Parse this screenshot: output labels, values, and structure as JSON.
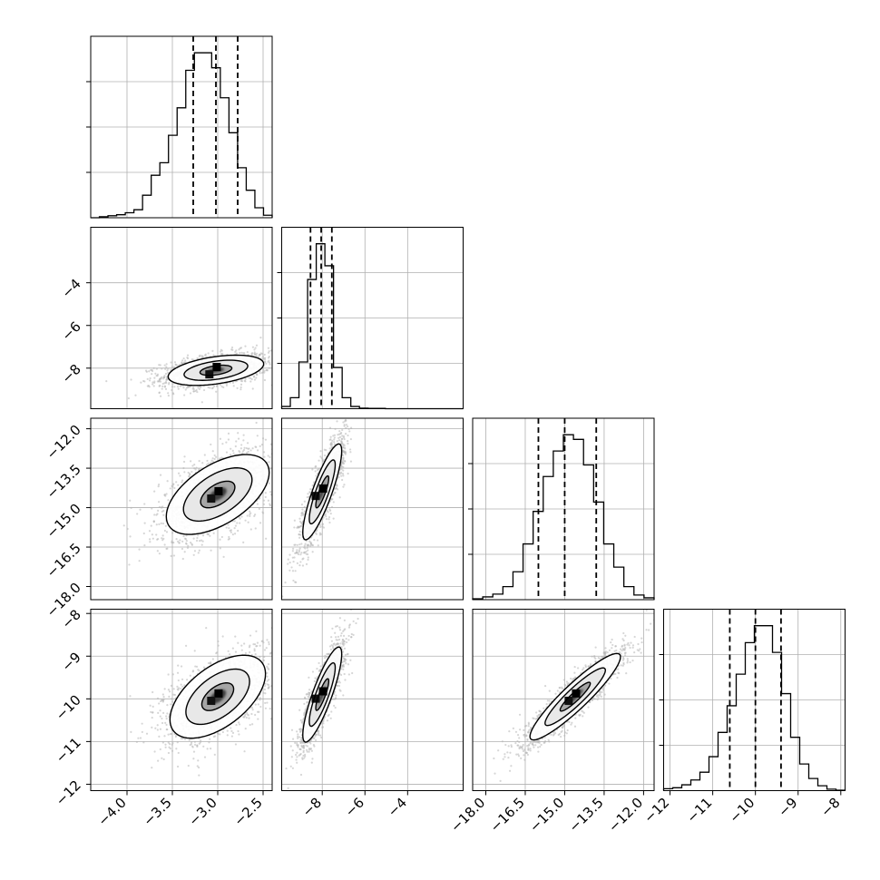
{
  "chart_data": {
    "type": "corner",
    "params": [
      {
        "key": "p0",
        "range": [
          -4.4,
          -2.4
        ],
        "ticks": [
          -4.0,
          -3.5,
          -3.0,
          -2.5
        ],
        "tick_labels": [
          "−4.0",
          "−3.5",
          "−3.0",
          "−2.5"
        ]
      },
      {
        "key": "p1",
        "range": [
          -9.9,
          -1.4
        ],
        "ticks": [
          -8,
          -6,
          -4
        ],
        "tick_labels": [
          "−8",
          "−6",
          "−4"
        ]
      },
      {
        "key": "p2",
        "range": [
          -18.5,
          -11.6
        ],
        "ticks": [
          -18.0,
          -16.5,
          -15.0,
          -13.5,
          -12.0
        ],
        "tick_labels": [
          "−18.0",
          "−16.5",
          "−15.0",
          "−13.5",
          "−12.0"
        ]
      },
      {
        "key": "p3",
        "range": [
          -12.15,
          -7.9
        ],
        "ticks": [
          -12,
          -11,
          -10,
          -9,
          -8
        ],
        "tick_labels": [
          "−12",
          "−11",
          "−10",
          "−9",
          "−8"
        ]
      }
    ],
    "histograms": [
      {
        "param": "p0",
        "bins": [
          -4.4,
          -2.4
        ],
        "counts": [
          0,
          2,
          4,
          6,
          10,
          16,
          45,
          85,
          110,
          165,
          220,
          295,
          330,
          330,
          300,
          240,
          170,
          100,
          55,
          20,
          5
        ],
        "quantiles": [
          -3.27,
          -3.02,
          -2.78
        ]
      },
      {
        "param": "p1",
        "bins": [
          -9.9,
          -1.4
        ],
        "counts": [
          8,
          40,
          170,
          470,
          600,
          520,
          150,
          40,
          8,
          2,
          1,
          1,
          0,
          0,
          0,
          0,
          0,
          0,
          0,
          0,
          0
        ],
        "quantiles": [
          -8.55,
          -8.05,
          -7.55
        ]
      },
      {
        "param": "p2",
        "bins": [
          -18.5,
          -11.6
        ],
        "counts": [
          2,
          6,
          12,
          28,
          60,
          120,
          190,
          265,
          320,
          355,
          345,
          290,
          210,
          120,
          70,
          28,
          10,
          4
        ],
        "quantiles": [
          -16.0,
          -15.0,
          -13.8
        ]
      },
      {
        "param": "p3",
        "bins": [
          -12.15,
          -7.9
        ],
        "counts": [
          4,
          6,
          12,
          22,
          38,
          70,
          120,
          175,
          240,
          305,
          340,
          340,
          285,
          200,
          110,
          55,
          25,
          10,
          3,
          1
        ],
        "quantiles": [
          -10.6,
          -10.0,
          -9.4
        ]
      }
    ],
    "pairs": [
      {
        "x": "p0",
        "y": "p1",
        "center": [
          -3.02,
          -8.1
        ],
        "sd": [
          0.26,
          0.35
        ],
        "corr": 0.42
      },
      {
        "x": "p0",
        "y": "p2",
        "center": [
          -3.0,
          -14.5
        ],
        "sd": [
          0.28,
          0.75
        ],
        "corr": 0.55
      },
      {
        "x": "p1",
        "y": "p2",
        "center": [
          -8.0,
          -14.4
        ],
        "sd": [
          0.45,
          0.9
        ],
        "corr": 0.85
      },
      {
        "x": "p0",
        "y": "p3",
        "center": [
          -3.0,
          -9.95
        ],
        "sd": [
          0.26,
          0.48
        ],
        "corr": 0.55
      },
      {
        "x": "p1",
        "y": "p3",
        "center": [
          -8.0,
          -9.9
        ],
        "sd": [
          0.45,
          0.55
        ],
        "corr": 0.85
      },
      {
        "x": "p2",
        "y": "p3",
        "center": [
          -14.6,
          -9.95
        ],
        "sd": [
          0.85,
          0.5
        ],
        "corr": 0.92
      }
    ],
    "contour_levels": [
      0.5,
      1.0,
      1.5
    ],
    "grid": true,
    "colors": {
      "hist_line": "#000000",
      "scatter": "#b4b4b4",
      "grid": "#b0b0b0"
    }
  }
}
